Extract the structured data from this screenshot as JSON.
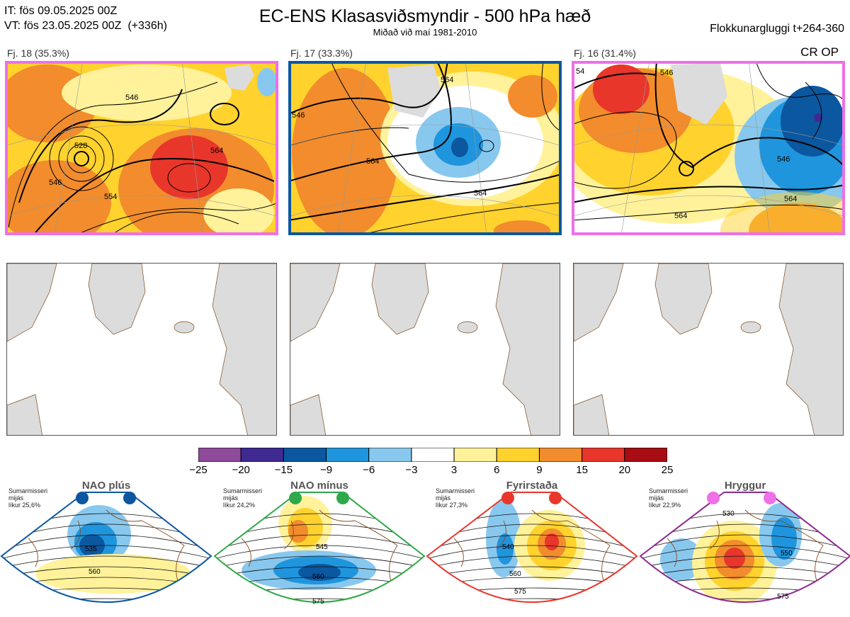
{
  "header": {
    "it_line": "IT: fös 09.05.2025 00Z",
    "vt_line": "VT: fös 23.05.2025 00Z",
    "vt_lead": "(+336h)",
    "title": "EC-ENS Klasasviðsmyndir - 500 hPa hæð",
    "subtitle": "Miðað við maí 1981-2010",
    "window": "Flokkunargluggi t+264-360"
  },
  "clusters": [
    {
      "label": "Fj. 18 (35.3%)",
      "frame_color": "#ee6fe8",
      "contours": [
        "546",
        "528",
        "546",
        "564",
        "554"
      ]
    },
    {
      "label": "Fj. 17 (33.3%)",
      "frame_color": "#0b57a0",
      "contours": [
        "546",
        "564",
        "564",
        "564"
      ]
    },
    {
      "label": "Fj. 16 (31.4%)",
      "frame_color": "#ee6fe8",
      "contours": [
        "54",
        "546",
        "546",
        "564",
        "564"
      ]
    }
  ],
  "cr_op": "CR OP",
  "colorbar": {
    "ticks": [
      "−25",
      "−20",
      "−15",
      "−9",
      "−6",
      "−3",
      "3",
      "6",
      "9",
      "15",
      "20",
      "25"
    ],
    "colors": [
      "#8e4a9b",
      "#3f2a92",
      "#0b57a0",
      "#1f95dd",
      "#88c8ee",
      "#ffffff",
      "#fff29a",
      "#ffd22e",
      "#f28c2c",
      "#e8362b",
      "#a80d14"
    ]
  },
  "regimes": [
    {
      "name": "NAO plús",
      "season": "Sumarmisseri",
      "quantity": "mijás",
      "prob": "líkur 25,6%",
      "frame_color": "#0b57a0",
      "dot_color": "#0b57a0",
      "contours": [
        "535",
        "560"
      ]
    },
    {
      "name": "NAO mínus",
      "season": "Sumarmisseri",
      "quantity": "mijás",
      "prob": "líkur 24,2%",
      "frame_color": "#2ea84a",
      "dot_color": "#2ea84a",
      "contours": [
        "545",
        "560",
        "575"
      ]
    },
    {
      "name": "Fyrirstaða",
      "season": "Sumarmisseri",
      "quantity": "mijás",
      "prob": "líkur 27,3%",
      "frame_color": "#e8362b",
      "dot_color": "#e8362b",
      "contours": [
        "540",
        "560",
        "575"
      ]
    },
    {
      "name": "Hryggur",
      "season": "Sumarmisseri",
      "quantity": "mijás",
      "prob": "líkur 22,9%",
      "frame_color": "#8e2b8f",
      "dot_color": "#ee6fe8",
      "contours": [
        "530",
        "550",
        "575"
      ]
    }
  ]
}
